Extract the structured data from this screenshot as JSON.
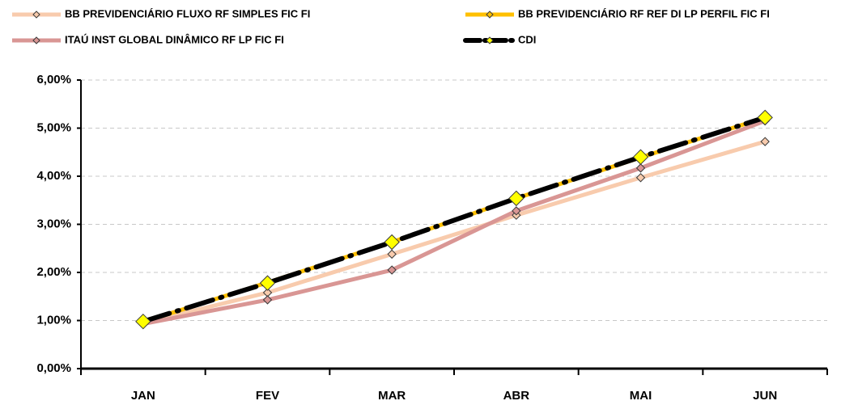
{
  "chart_data": {
    "type": "line",
    "categories": [
      "JAN",
      "FEV",
      "MAR",
      "ABR",
      "MAI",
      "JUN"
    ],
    "series": [
      {
        "name": "BB PREVIDENCIÁRIO FLUXO RF SIMPLES FIC FI",
        "color": "#F8CBAD",
        "values": [
          0.95,
          1.58,
          2.38,
          3.19,
          3.97,
          4.72
        ]
      },
      {
        "name": "BB PREVIDENCIÁRIO RF REF DI LP PERFIL FIC FI",
        "color": "#FFC000",
        "values": [
          0.97,
          1.79,
          2.63,
          3.54,
          4.39,
          5.22
        ]
      },
      {
        "name": "ITAÚ INST GLOBAL DINÂMICO RF LP FIC FI",
        "color": "#D99694",
        "values": [
          0.93,
          1.43,
          2.05,
          3.28,
          4.17,
          5.15
        ]
      },
      {
        "name": "CDI",
        "color": "#000000",
        "values": [
          0.98,
          1.78,
          2.63,
          3.54,
          4.4,
          5.22
        ]
      }
    ],
    "ylim": [
      0,
      6
    ],
    "yticks": [
      {
        "value": 0,
        "label": "0,00%"
      },
      {
        "value": 1,
        "label": "1,00%"
      },
      {
        "value": 2,
        "label": "2,00%"
      },
      {
        "value": 3,
        "label": "3,00%"
      },
      {
        "value": 4,
        "label": "4,00%"
      },
      {
        "value": 5,
        "label": "5,00%"
      },
      {
        "value": 6,
        "label": "6,00%"
      }
    ],
    "grid": true,
    "legend": "top"
  }
}
